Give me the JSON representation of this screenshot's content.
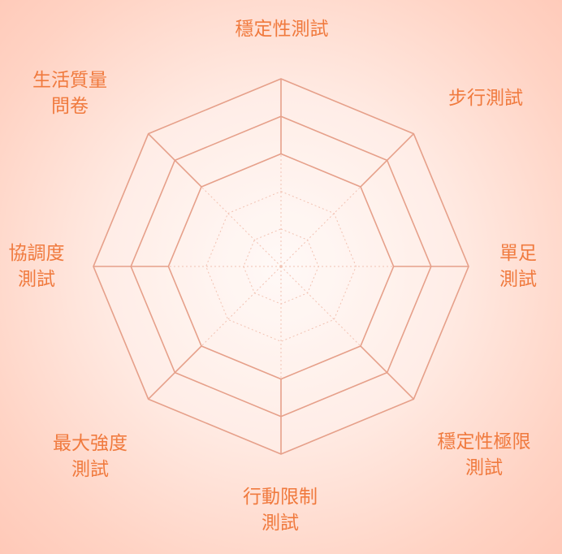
{
  "diagram": {
    "type": "radar-octagon",
    "axis_count": 8,
    "ring_levels": [
      0.2,
      0.4,
      0.6,
      0.8,
      1.0
    ],
    "inner_rings_dashed": true,
    "colors": {
      "label": "#f07a3e",
      "outer_ring": "#e6a08a",
      "inner_ring": "#f2c2b2"
    },
    "axes": [
      {
        "id": "stability",
        "lines": [
          "穩定性測試"
        ]
      },
      {
        "id": "walking",
        "lines": [
          "步行測試"
        ]
      },
      {
        "id": "single-leg",
        "lines": [
          "單足",
          "測試"
        ]
      },
      {
        "id": "stability-limit",
        "lines": [
          "穩定性極限",
          "測試"
        ]
      },
      {
        "id": "mobility-limit",
        "lines": [
          "行動限制",
          "測試"
        ]
      },
      {
        "id": "max-strength",
        "lines": [
          "最大強度",
          "測試"
        ]
      },
      {
        "id": "coordination",
        "lines": [
          "協調度",
          "測試"
        ]
      },
      {
        "id": "quality-of-life",
        "lines": [
          "生活質量",
          "問卷"
        ]
      }
    ]
  }
}
